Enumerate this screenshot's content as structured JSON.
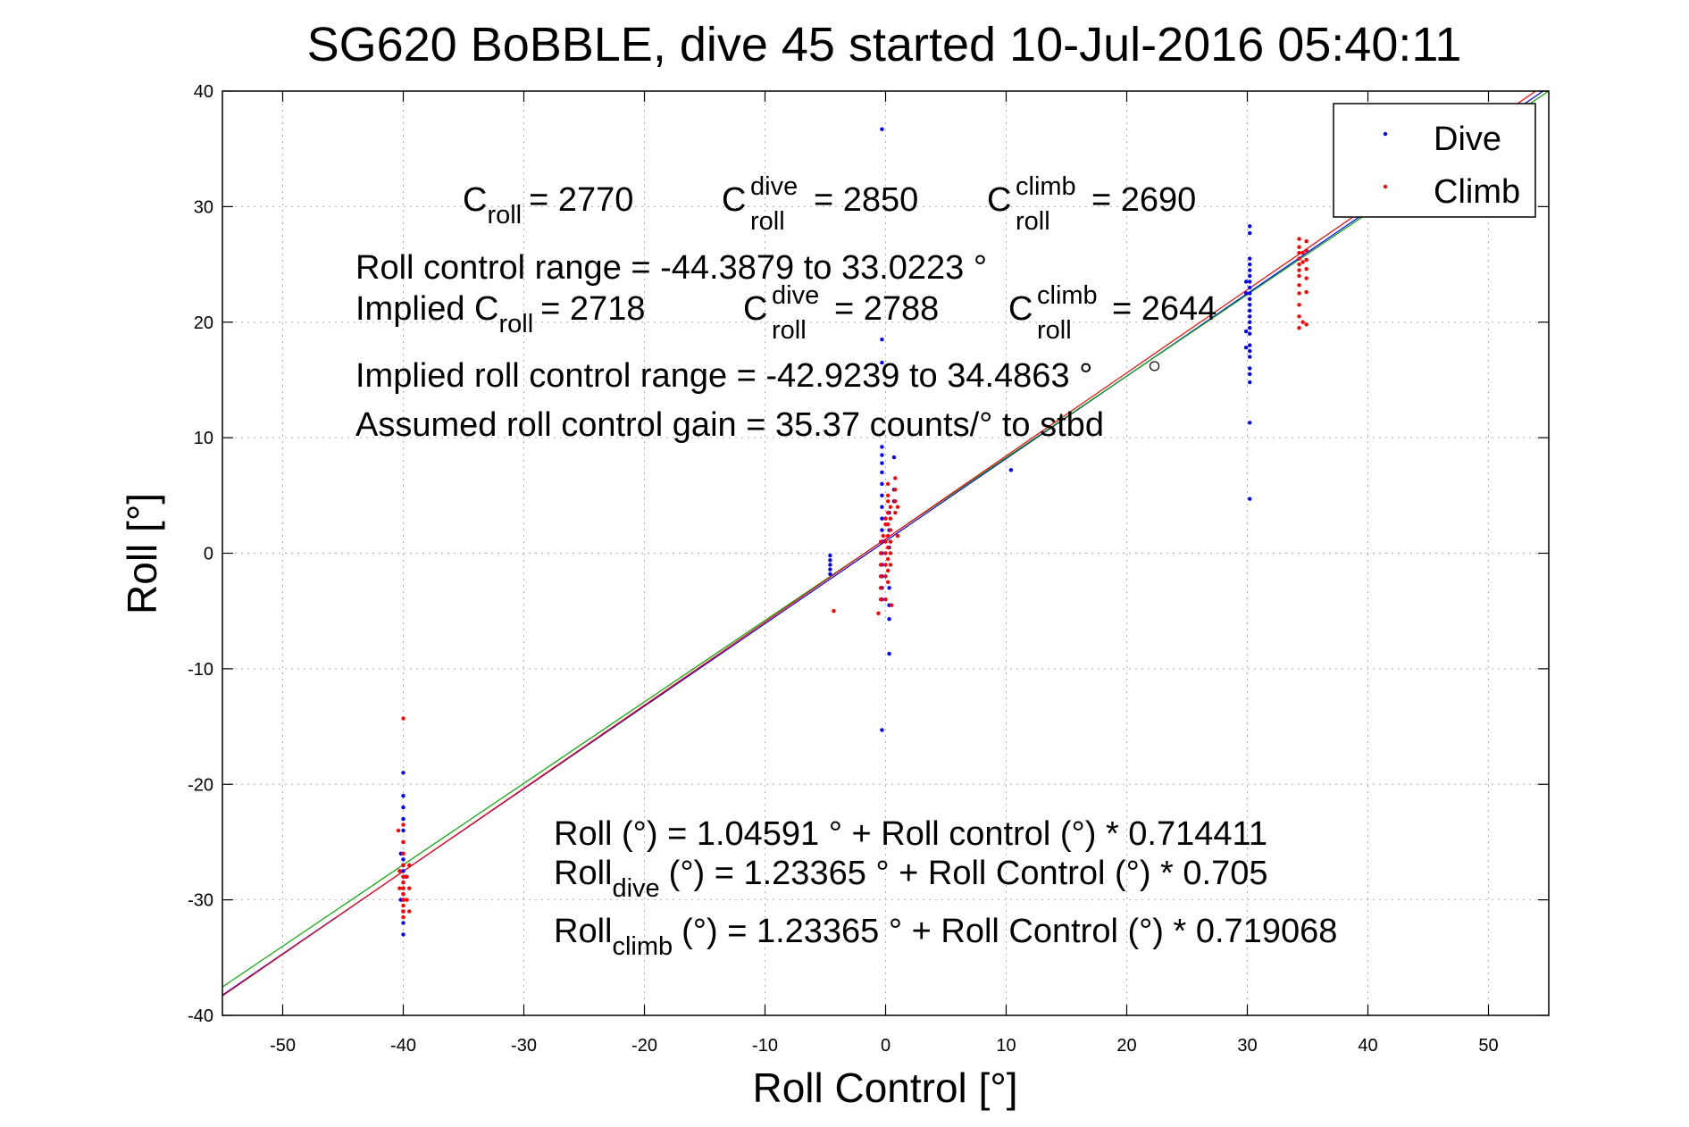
{
  "chart_data": {
    "type": "scatter",
    "title": "SG620 BoBBLE, dive 45 started 10-Jul-2016 05:40:11",
    "xlabel": "Roll Control [°]",
    "ylabel": "Roll [°]",
    "xlim": [
      -55,
      55
    ],
    "ylim": [
      -40,
      40
    ],
    "xticks": [
      -50,
      -40,
      -30,
      -20,
      -10,
      0,
      10,
      20,
      30,
      40,
      50
    ],
    "yticks": [
      -40,
      -30,
      -20,
      -10,
      0,
      10,
      20,
      30,
      40
    ],
    "xtick_labels": [
      "-50",
      "-40",
      "-30",
      "-20",
      "-10",
      "0",
      "10",
      "20",
      "30",
      "40",
      "50"
    ],
    "ytick_labels": [
      "-40",
      "-30",
      "-20",
      "-10",
      "0",
      "10",
      "20",
      "30",
      "40"
    ],
    "grid": true,
    "legend": {
      "position": "top-right",
      "entries": [
        {
          "label": "Dive",
          "color": "#0000ff"
        },
        {
          "label": "Climb",
          "color": "#ff0000"
        }
      ]
    },
    "series": [
      {
        "name": "Dive",
        "color": "#0000ff",
        "points": [
          [
            -40,
            -33
          ],
          [
            -40,
            -32
          ],
          [
            -40,
            -31
          ],
          [
            -40,
            -30
          ],
          [
            -40,
            -29.5
          ],
          [
            -40,
            -29
          ],
          [
            -40,
            -28.5
          ],
          [
            -40,
            -28
          ],
          [
            -40,
            -27.5
          ],
          [
            -40,
            -27
          ],
          [
            -40,
            -26.5
          ],
          [
            -40,
            -26
          ],
          [
            -40,
            -25
          ],
          [
            -40,
            -24
          ],
          [
            -40,
            -23
          ],
          [
            -40,
            -22
          ],
          [
            -40,
            -21
          ],
          [
            -40,
            -19
          ],
          [
            -40.2,
            -26
          ],
          [
            -39.8,
            -28
          ],
          [
            -40.2,
            -30
          ],
          [
            -4.6,
            -0.2
          ],
          [
            -4.6,
            -0.6
          ],
          [
            -4.6,
            -1.0
          ],
          [
            -4.6,
            -1.4
          ],
          [
            -4.6,
            -1.8
          ],
          [
            -0.3,
            36.7
          ],
          [
            -0.3,
            18.5
          ],
          [
            -0.3,
            16.5
          ],
          [
            -0.3,
            9.2
          ],
          [
            -0.3,
            8.5
          ],
          [
            -0.3,
            7.8
          ],
          [
            -0.3,
            7
          ],
          [
            -0.3,
            6
          ],
          [
            -0.3,
            5
          ],
          [
            -0.3,
            4
          ],
          [
            -0.3,
            3
          ],
          [
            -0.3,
            2
          ],
          [
            -0.3,
            1
          ],
          [
            -0.3,
            0
          ],
          [
            -0.3,
            -1
          ],
          [
            -0.3,
            -2
          ],
          [
            -0.3,
            -3
          ],
          [
            -0.3,
            -4
          ],
          [
            -0.3,
            -15.3
          ],
          [
            0.3,
            -8.7
          ],
          [
            0.3,
            -5.7
          ],
          [
            0.3,
            -4.5
          ],
          [
            0.3,
            -3
          ],
          [
            0.3,
            0.5
          ],
          [
            0.3,
            2
          ],
          [
            0.3,
            3.5
          ],
          [
            0.7,
            8.3
          ],
          [
            0.7,
            5.5
          ],
          [
            0.7,
            4.5
          ],
          [
            30.2,
            28.3
          ],
          [
            30.2,
            27.7
          ],
          [
            30.2,
            25.5
          ],
          [
            30.2,
            25
          ],
          [
            30.2,
            24.5
          ],
          [
            30.2,
            24
          ],
          [
            30.2,
            23.5
          ],
          [
            30.2,
            23
          ],
          [
            30.2,
            22.5
          ],
          [
            30.2,
            22
          ],
          [
            30.2,
            21.5
          ],
          [
            30.2,
            21
          ],
          [
            30.2,
            20.5
          ],
          [
            30.2,
            20
          ],
          [
            30.2,
            19.5
          ],
          [
            30.2,
            19
          ],
          [
            30.2,
            18
          ],
          [
            30.2,
            17.5
          ],
          [
            30.2,
            17
          ],
          [
            30.2,
            16
          ],
          [
            30.2,
            15.5
          ],
          [
            30.2,
            14.8
          ],
          [
            30.2,
            11.3
          ],
          [
            30.2,
            4.7
          ],
          [
            29.9,
            22.5
          ],
          [
            29.9,
            19.2
          ],
          [
            29.9,
            17.8
          ],
          [
            29.9,
            23.5
          ],
          [
            10.4,
            7.2
          ]
        ]
      },
      {
        "name": "Climb",
        "color": "#ff0000",
        "points": [
          [
            -40,
            -14.3
          ],
          [
            -40,
            -23.5
          ],
          [
            -40,
            -25
          ],
          [
            -40,
            -26
          ],
          [
            -40,
            -27
          ],
          [
            -40,
            -28
          ],
          [
            -40,
            -28.5
          ],
          [
            -40,
            -29
          ],
          [
            -40,
            -29.5
          ],
          [
            -40,
            -30
          ],
          [
            -40,
            -30.5
          ],
          [
            -40,
            -31
          ],
          [
            -40,
            -31.5
          ],
          [
            -40.3,
            -27.5
          ],
          [
            -40.3,
            -29
          ],
          [
            -39.7,
            -28
          ],
          [
            -39.7,
            -30
          ],
          [
            -39.5,
            -29
          ],
          [
            -39.5,
            -27
          ],
          [
            -39.5,
            -31
          ],
          [
            -40.4,
            -24
          ],
          [
            -4.3,
            -5
          ],
          [
            -0.6,
            -5.2
          ],
          [
            -0.4,
            -4
          ],
          [
            -0.4,
            -3
          ],
          [
            -0.4,
            -2
          ],
          [
            -0.4,
            -1
          ],
          [
            -0.4,
            0
          ],
          [
            -0.4,
            1
          ],
          [
            -0.2,
            1.5
          ],
          [
            0,
            2.5
          ],
          [
            0,
            3
          ],
          [
            0,
            1
          ],
          [
            0,
            0
          ],
          [
            0,
            -1
          ],
          [
            0,
            -2
          ],
          [
            0.2,
            6
          ],
          [
            0.2,
            5
          ],
          [
            0.2,
            4.5
          ],
          [
            0.2,
            3.5
          ],
          [
            0.2,
            2.5
          ],
          [
            0.2,
            1.5
          ],
          [
            0.2,
            0.5
          ],
          [
            0.2,
            -0.5
          ],
          [
            0.2,
            -1.5
          ],
          [
            0.2,
            -2.5
          ],
          [
            0.4,
            4
          ],
          [
            0.4,
            3
          ],
          [
            0.4,
            2
          ],
          [
            0.4,
            1
          ],
          [
            0.4,
            0
          ],
          [
            0.4,
            -1
          ],
          [
            0.8,
            6.5
          ],
          [
            0.8,
            5.5
          ],
          [
            0.8,
            4.5
          ],
          [
            0.8,
            3.5
          ],
          [
            1,
            4
          ],
          [
            1,
            1.5
          ],
          [
            0.5,
            -4.5
          ],
          [
            0,
            -4
          ],
          [
            34.3,
            27.2
          ],
          [
            34.3,
            26.5
          ],
          [
            34.3,
            26
          ],
          [
            34.3,
            25.5
          ],
          [
            34.3,
            25
          ],
          [
            34.3,
            24.5
          ],
          [
            34.3,
            24
          ],
          [
            34.3,
            23.2
          ],
          [
            34.3,
            22.5
          ],
          [
            34.3,
            21.5
          ],
          [
            34.3,
            20.5
          ],
          [
            34.3,
            19.5
          ],
          [
            34.6,
            26
          ],
          [
            34.6,
            25.2
          ],
          [
            34.6,
            20
          ],
          [
            34.9,
            27
          ],
          [
            34.9,
            26.2
          ],
          [
            34.9,
            25.4
          ],
          [
            34.9,
            24.6
          ],
          [
            34.9,
            23.8
          ],
          [
            34.9,
            22.6
          ],
          [
            34.9,
            19.8
          ]
        ]
      }
    ],
    "fit_lines": [
      {
        "color": "#0000ff",
        "intercept": 1.04591,
        "slope": 0.714411
      },
      {
        "color": "#00aa00",
        "intercept": 1.23365,
        "slope": 0.705
      },
      {
        "color": "#ff0000",
        "intercept": 1.23365,
        "slope": 0.719068
      }
    ],
    "marker": {
      "x": 22.3,
      "y": 16.2
    },
    "annotations": {
      "c_roll": {
        "base": "C",
        "sub": "roll",
        "value": "= 2770"
      },
      "c_roll_dive": {
        "base": "C",
        "sup": "dive",
        "sub": "roll",
        "value": "= 2850"
      },
      "c_roll_climb": {
        "base": "C",
        "sup": "climb",
        "sub": "roll",
        "value": "= 2690"
      },
      "roll_control_range": "Roll control range = -44.3879 to 33.0223 °",
      "implied_c_roll": {
        "prefix": "Implied C",
        "sub": "roll",
        "value": "= 2718"
      },
      "implied_c_roll_dive": {
        "base": "C",
        "sup": "dive",
        "sub": "roll",
        "value": "= 2788"
      },
      "implied_c_roll_climb": {
        "base": "C",
        "sup": "climb",
        "sub": "roll",
        "value": "= 2644"
      },
      "implied_range": "Implied roll control range = -42.9239 to 34.4863 °",
      "assumed_gain": "Assumed roll control gain = 35.37 counts/° to stbd",
      "fit_all": "Roll (°) = 1.04591 ° + Roll control (°) * 0.714411",
      "fit_dive": {
        "base": "Roll",
        "sub": "dive",
        "rest": "(°) = 1.23365 ° + Roll Control (°) * 0.705"
      },
      "fit_climb": {
        "base": "Roll",
        "sub": "climb",
        "rest": "(°) = 1.23365 ° + Roll Control (°) * 0.719068"
      }
    }
  }
}
